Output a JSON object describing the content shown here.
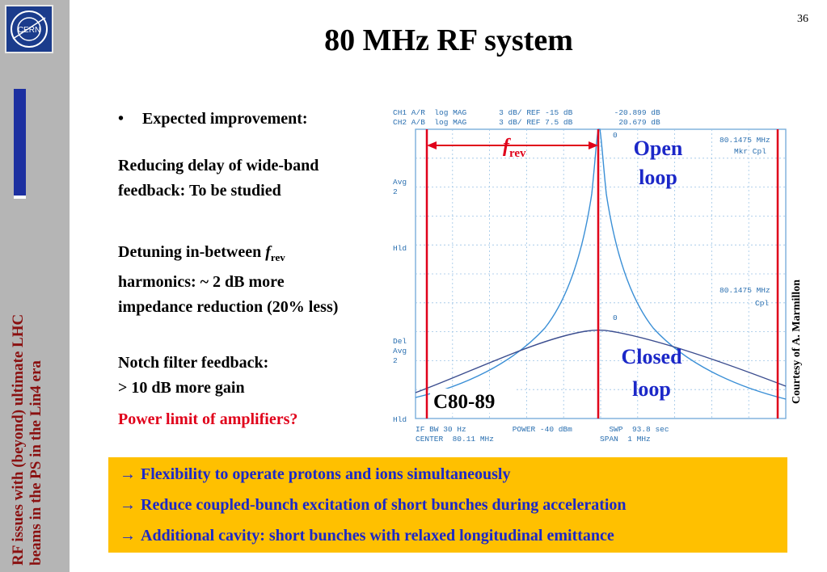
{
  "page_number": "36",
  "title": "80 MHz RF system",
  "sidebar": {
    "logo_text": "CERN",
    "vertical_text_line1": "RF issues with (beyond) ultimate LHC",
    "vertical_text_line2": "beams in the PS in the Lin4 era"
  },
  "bullet": "Expected improvement:",
  "paragraphs": {
    "p1_line1": "Reducing delay of wide-band",
    "p1_line2": "feedback: To be studied",
    "p2_line1_prefix": "Detuning in-between ",
    "p2_f": "f",
    "p2_sub": "rev",
    "p2_line2": "harmonics: ~ 2 dB more",
    "p2_line3": "impedance reduction (20% less)",
    "p3_line1": "Notch filter feedback:",
    "p3_line2": "> 10 dB more gain",
    "p4": "Power limit of amplifiers?"
  },
  "plot": {
    "header_line1": "CH1 A/R  log MAG       3 dB/ REF -15 dB         -20.899 dB",
    "header_line2": "CH2 A/B  log MAG       3 dB/ REF 7.5 dB          20.679 dB",
    "left_labels": [
      "Avg",
      "2",
      "Hld",
      "Del",
      "Avg",
      "2",
      "Hld"
    ],
    "marker1_freq": "80.1475 MHz",
    "marker1_mode": "Mkr Cpl",
    "marker2_freq": "80.1475 MHz",
    "marker2_mode": "Cpl",
    "footer_line1": "IF BW 30 Hz          POWER -40 dBm        SWP  93.8 sec",
    "footer_line2": "CENTER  80.11 MHz                       SPAN  1 MHz",
    "frev_f": "f",
    "frev_sub": "rev",
    "open_loop_l1": "Open",
    "open_loop_l2": "loop",
    "closed_loop_l1": "Closed",
    "closed_loop_l2": "loop",
    "cavity_label": "C80-89",
    "marker_zero": "0"
  },
  "courtesy": "Courtesy of A. Marmillon",
  "callout": {
    "arrow": "→",
    "item1": "Flexibility to operate protons and ions simultaneously",
    "item2": "Reduce coupled-bunch excitation of short bunches during acceleration",
    "item3": "Additional cavity: short bunches with relaxed longitudinal emittance"
  },
  "colors": {
    "red": "#e0001a",
    "callout_bg": "#ffc000",
    "callout_text": "#1c28c8",
    "sidebar_text": "#8a1010",
    "open_trace": "#3a8fd6",
    "closed_trace": "#3b4d8f"
  }
}
